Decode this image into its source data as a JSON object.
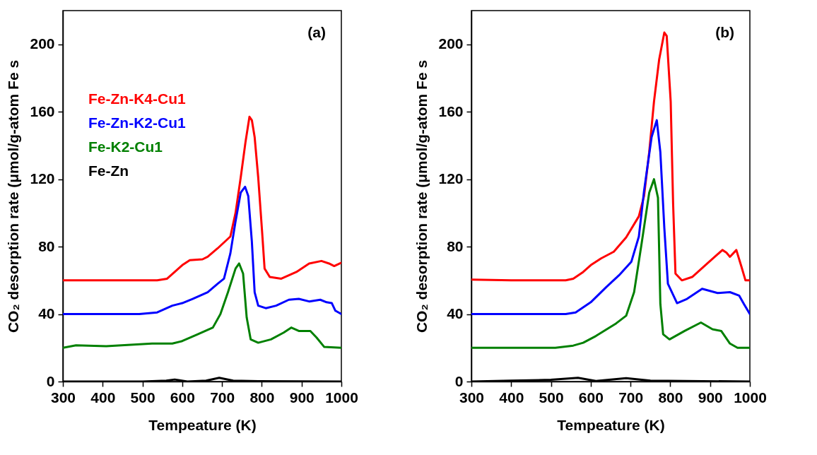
{
  "chart_data": [
    {
      "type": "line",
      "xlabel": "Tempeature (K)",
      "ylabel": "CO₂ desorption rate (μmol/g-atom Fe s",
      "annotations": [
        "(a)"
      ],
      "xlim": [
        300,
        1000
      ],
      "ylim": [
        0,
        220
      ],
      "xticks": [
        300,
        400,
        500,
        600,
        700,
        800,
        900,
        1000
      ],
      "yticks": [
        0,
        40,
        80,
        120,
        160,
        200
      ],
      "legend": "top left",
      "series": [
        {
          "name": "Fe-Zn-K4-Cu1",
          "color": "#ff0000",
          "x": [
            300,
            400,
            537,
            562,
            581,
            600,
            619,
            651,
            664,
            689,
            721,
            734,
            747,
            759,
            769,
            775,
            782,
            791,
            801,
            807,
            820,
            849,
            887,
            919,
            950,
            969,
            982,
            1000
          ],
          "values": [
            60,
            60,
            60,
            61,
            65,
            69,
            72,
            72.5,
            74,
            79,
            86,
            100,
            121,
            142,
            157,
            155,
            145,
            121,
            88,
            67,
            62,
            61,
            65,
            70,
            71.5,
            70,
            68.5,
            70.5
          ]
        },
        {
          "name": "Fe-Zn-K2-Cu1",
          "color": "#0000ff",
          "x": [
            300,
            400,
            492,
            537,
            575,
            600,
            626,
            664,
            689,
            705,
            721,
            734,
            747,
            758,
            766,
            775,
            782,
            791,
            810,
            836,
            868,
            893,
            919,
            947,
            963,
            976,
            985,
            1000
          ],
          "values": [
            40,
            40,
            40,
            41,
            45,
            46.5,
            49,
            53,
            58,
            61,
            76,
            95,
            112,
            115.5,
            110,
            83,
            53,
            45,
            43.5,
            45,
            48.5,
            49,
            47.5,
            48.5,
            47,
            46.5,
            42,
            40
          ]
        },
        {
          "name": "Fe-K2-Cu1",
          "color": "#008000",
          "x": [
            300,
            333,
            409,
            524,
            575,
            600,
            639,
            677,
            696,
            715,
            734,
            743,
            753,
            762,
            772,
            791,
            823,
            855,
            874,
            893,
            922,
            938,
            957,
            1000
          ],
          "values": [
            20,
            21.5,
            21,
            22.5,
            22.5,
            24,
            28,
            32,
            40,
            53,
            67,
            70,
            64,
            38,
            25,
            23,
            25,
            29,
            32,
            30,
            30,
            26,
            20.5,
            20
          ]
        },
        {
          "name": "Fe-Zn",
          "color": "#000000",
          "x": [
            300,
            500,
            560,
            581,
            613,
            660,
            693,
            728,
            791,
            1000
          ],
          "values": [
            0,
            0,
            0.5,
            1.2,
            0,
            0.5,
            2.2,
            0.5,
            0.2,
            0
          ]
        }
      ]
    },
    {
      "type": "line",
      "xlabel": "Tempeature (K)",
      "ylabel": "CO₂ desorption rate (μmol/g-atom Fe s",
      "annotations": [
        "(b)"
      ],
      "xlim": [
        300,
        1000
      ],
      "ylim": [
        0,
        220
      ],
      "xticks": [
        300,
        400,
        500,
        600,
        700,
        800,
        900,
        1000
      ],
      "yticks": [
        0,
        40,
        80,
        120,
        160,
        200
      ],
      "series": [
        {
          "color": "#ff0000",
          "x": [
            300,
            400,
            537,
            556,
            581,
            600,
            626,
            658,
            689,
            721,
            734,
            747,
            759,
            772,
            785,
            791,
            801,
            807,
            813,
            829,
            855,
            893,
            931,
            941,
            950,
            966,
            979,
            989,
            1000
          ],
          "values": [
            60.5,
            60,
            60,
            61,
            65,
            69,
            73,
            77,
            85.5,
            98,
            110,
            136,
            166,
            191,
            207,
            205,
            166,
            106,
            64,
            60,
            62,
            70,
            78,
            76.5,
            74,
            78,
            68,
            60,
            60
          ]
        },
        {
          "color": "#0000ff",
          "x": [
            300,
            400,
            537,
            562,
            600,
            639,
            671,
            702,
            721,
            734,
            753,
            766,
            775,
            785,
            794,
            817,
            842,
            880,
            919,
            950,
            973,
            985,
            1000
          ],
          "values": [
            40,
            40,
            40,
            41,
            47,
            56,
            63,
            71,
            86,
            113,
            145,
            155,
            136,
            91,
            58,
            46.5,
            49,
            55,
            52.5,
            53,
            51,
            46,
            40
          ]
        },
        {
          "color": "#008000",
          "x": [
            300,
            400,
            511,
            556,
            581,
            613,
            664,
            689,
            709,
            728,
            747,
            759,
            769,
            775,
            782,
            798,
            836,
            877,
            906,
            928,
            950,
            969,
            1000
          ],
          "values": [
            20,
            20,
            20,
            21.3,
            23,
            27,
            34.5,
            39,
            53,
            82,
            112,
            120,
            109,
            46,
            28,
            25,
            30,
            35,
            31,
            30,
            22.5,
            20,
            20
          ]
        },
        {
          "color": "#000000",
          "x": [
            300,
            400,
            500,
            568,
            613,
            689,
            750,
            1000
          ],
          "values": [
            0,
            0.5,
            1,
            2.2,
            0.3,
            2,
            0.5,
            0
          ]
        }
      ]
    }
  ]
}
